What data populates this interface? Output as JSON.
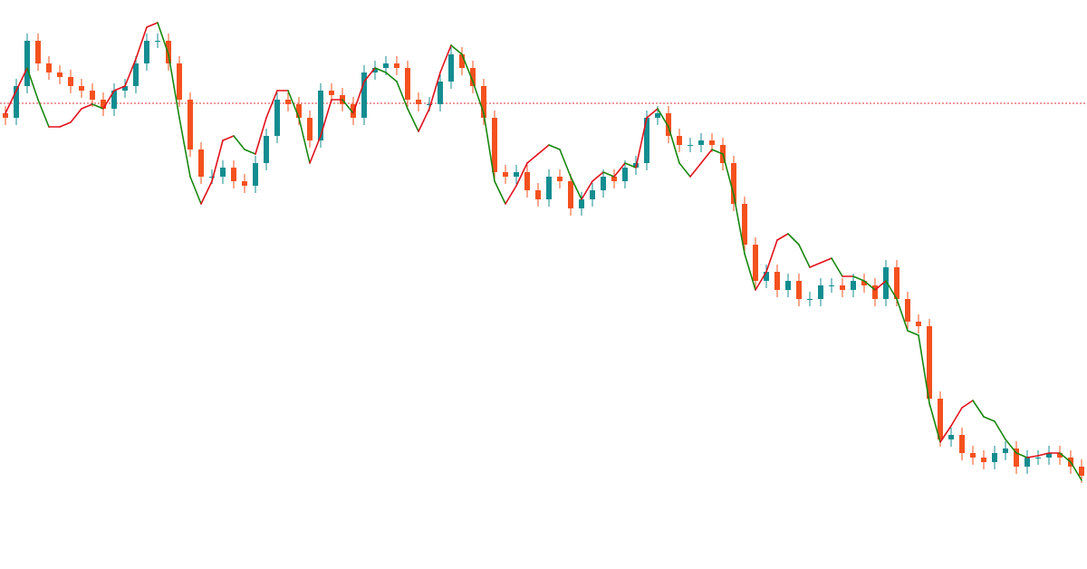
{
  "chart_data": {
    "type": "candlestick",
    "ylim": [
      0,
      628
    ],
    "up_color": "#138d90",
    "down_color": "#f4511e",
    "open": [
      503,
      498,
      533,
      583,
      558,
      548,
      543,
      533,
      528,
      518,
      508,
      528,
      533,
      558,
      583,
      583,
      558,
      518,
      463,
      433,
      433,
      443,
      428,
      423,
      448,
      478,
      518,
      513,
      498,
      473,
      528,
      523,
      513,
      498,
      548,
      553,
      558,
      553,
      518,
      513,
      513,
      538,
      568,
      553,
      533,
      498,
      438,
      433,
      438,
      418,
      408,
      433,
      428,
      398,
      408,
      418,
      433,
      428,
      443,
      448,
      498,
      503,
      478,
      468,
      468,
      473,
      468,
      448,
      403,
      358,
      318,
      328,
      308,
      318,
      298,
      298,
      313,
      313,
      308,
      318,
      313,
      298,
      333,
      298,
      273,
      268,
      188,
      143,
      148,
      128,
      123,
      118,
      128,
      133,
      113,
      123,
      123,
      128,
      123,
      113
    ],
    "high": [
      511,
      541,
      591,
      591,
      566,
      556,
      551,
      541,
      536,
      526,
      536,
      541,
      566,
      591,
      591,
      591,
      566,
      526,
      471,
      441,
      451,
      451,
      436,
      456,
      486,
      526,
      526,
      521,
      506,
      536,
      536,
      531,
      521,
      556,
      561,
      566,
      566,
      561,
      526,
      521,
      546,
      576,
      576,
      561,
      541,
      506,
      446,
      446,
      446,
      426,
      441,
      441,
      436,
      416,
      426,
      441,
      441,
      451,
      456,
      506,
      511,
      511,
      486,
      476,
      481,
      481,
      476,
      456,
      411,
      366,
      336,
      336,
      326,
      326,
      306,
      321,
      321,
      321,
      326,
      326,
      321,
      341,
      341,
      306,
      281,
      276,
      196,
      156,
      156,
      136,
      131,
      136,
      141,
      141,
      131,
      131,
      136,
      136,
      131,
      121
    ],
    "low": [
      490,
      490,
      525,
      550,
      540,
      535,
      525,
      520,
      510,
      500,
      500,
      520,
      525,
      550,
      575,
      550,
      510,
      455,
      425,
      425,
      425,
      420,
      415,
      415,
      440,
      470,
      505,
      490,
      465,
      465,
      515,
      505,
      490,
      490,
      540,
      545,
      545,
      510,
      505,
      505,
      505,
      530,
      545,
      525,
      490,
      430,
      425,
      425,
      410,
      400,
      400,
      420,
      390,
      390,
      400,
      410,
      420,
      420,
      435,
      440,
      490,
      470,
      460,
      460,
      460,
      460,
      440,
      395,
      350,
      310,
      310,
      300,
      300,
      290,
      290,
      290,
      305,
      300,
      300,
      305,
      290,
      290,
      290,
      265,
      260,
      180,
      135,
      135,
      120,
      115,
      110,
      110,
      120,
      105,
      105,
      115,
      115,
      115,
      105,
      95
    ],
    "close": [
      498,
      533,
      583,
      558,
      548,
      543,
      533,
      528,
      518,
      508,
      528,
      533,
      558,
      583,
      583,
      558,
      518,
      463,
      433,
      433,
      443,
      428,
      423,
      448,
      478,
      518,
      513,
      498,
      473,
      528,
      523,
      513,
      498,
      548,
      553,
      558,
      553,
      518,
      513,
      513,
      538,
      568,
      553,
      533,
      498,
      438,
      433,
      438,
      418,
      408,
      433,
      428,
      398,
      408,
      418,
      433,
      428,
      443,
      448,
      498,
      503,
      478,
      468,
      468,
      473,
      468,
      448,
      403,
      358,
      318,
      328,
      308,
      318,
      298,
      298,
      313,
      313,
      308,
      318,
      313,
      298,
      333,
      298,
      273,
      268,
      188,
      143,
      148,
      128,
      123,
      118,
      128,
      133,
      113,
      123,
      123,
      128,
      123,
      113,
      103
    ],
    "indicator": {
      "rising_color": "#e3101c",
      "falling_color": "#17870f",
      "values": [
        503,
        528,
        553,
        518,
        488,
        488,
        493,
        508,
        513,
        508,
        528,
        533,
        563,
        598,
        603,
        568,
        498,
        433,
        403,
        428,
        473,
        478,
        463,
        458,
        498,
        528,
        528,
        498,
        448,
        478,
        518,
        518,
        503,
        538,
        553,
        548,
        538,
        508,
        483,
        508,
        548,
        578,
        568,
        538,
        503,
        428,
        403,
        423,
        448,
        458,
        468,
        463,
        433,
        408,
        428,
        438,
        433,
        448,
        443,
        498,
        508,
        488,
        448,
        433,
        448,
        463,
        458,
        413,
        348,
        308,
        328,
        363,
        370,
        358,
        333,
        338,
        343,
        323,
        323,
        318,
        308,
        318,
        298,
        263,
        258,
        183,
        140,
        158,
        178,
        186,
        168,
        163,
        143,
        128,
        123,
        125,
        128,
        128,
        118,
        98
      ]
    },
    "reference_line": {
      "value": 514,
      "color": "#d9373a"
    }
  }
}
